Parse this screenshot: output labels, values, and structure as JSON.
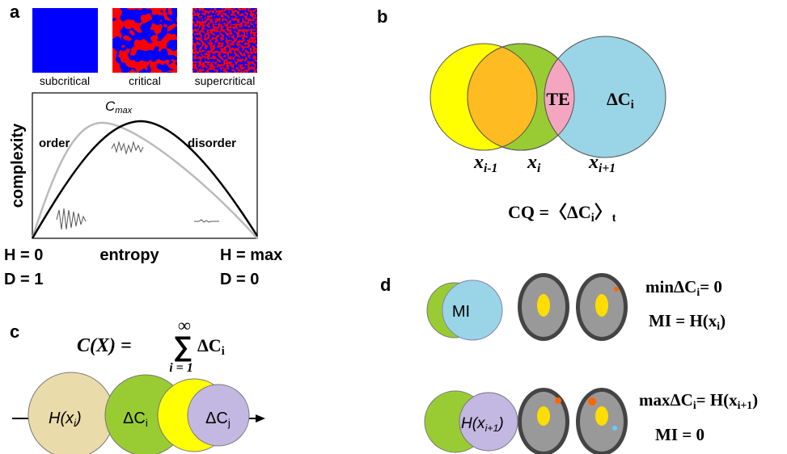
{
  "a": {
    "label": "a",
    "states": [
      "subcritical",
      "critical",
      "supercritical"
    ],
    "y_label": "complexity",
    "peak": [
      "C",
      "max"
    ],
    "regions": [
      "order",
      "disorder"
    ],
    "x_label": "entropy",
    "left": [
      "H = 0",
      "D = 1"
    ],
    "right": [
      "H = max",
      "D = 0"
    ]
  },
  "b": {
    "label": "b",
    "overlap": "TE",
    "delta": [
      "ΔC",
      "i"
    ],
    "nodes": [
      [
        "x",
        "i-1"
      ],
      [
        "x",
        "i"
      ],
      [
        "x",
        "i+1"
      ]
    ],
    "formula": [
      "CQ =〈ΔC",
      "i",
      "〉",
      "t"
    ]
  },
  "c": {
    "label": "c",
    "formula": {
      "lhs": "C(X) =",
      "sum": "∑",
      "upper": "∞",
      "lower": "i = 1",
      "term": [
        "ΔC",
        "i"
      ]
    },
    "circles": [
      [
        "H(x",
        "i",
        ")"
      ],
      [
        "ΔC",
        "i"
      ],
      [
        "ΔC",
        "j"
      ]
    ]
  },
  "d": {
    "label": "d",
    "rows": [
      {
        "venn": [
          "MI"
        ],
        "equations": [
          [
            "minΔC",
            "i",
            "= 0"
          ],
          [
            "MI = H(x",
            "i",
            ")"
          ]
        ]
      },
      {
        "venn": [
          "H(x",
          "i+1",
          ")"
        ],
        "equations": [
          [
            "maxΔC",
            "i",
            "= H(x",
            "i+1",
            ")"
          ],
          [
            "MI = 0"
          ]
        ]
      }
    ]
  }
}
